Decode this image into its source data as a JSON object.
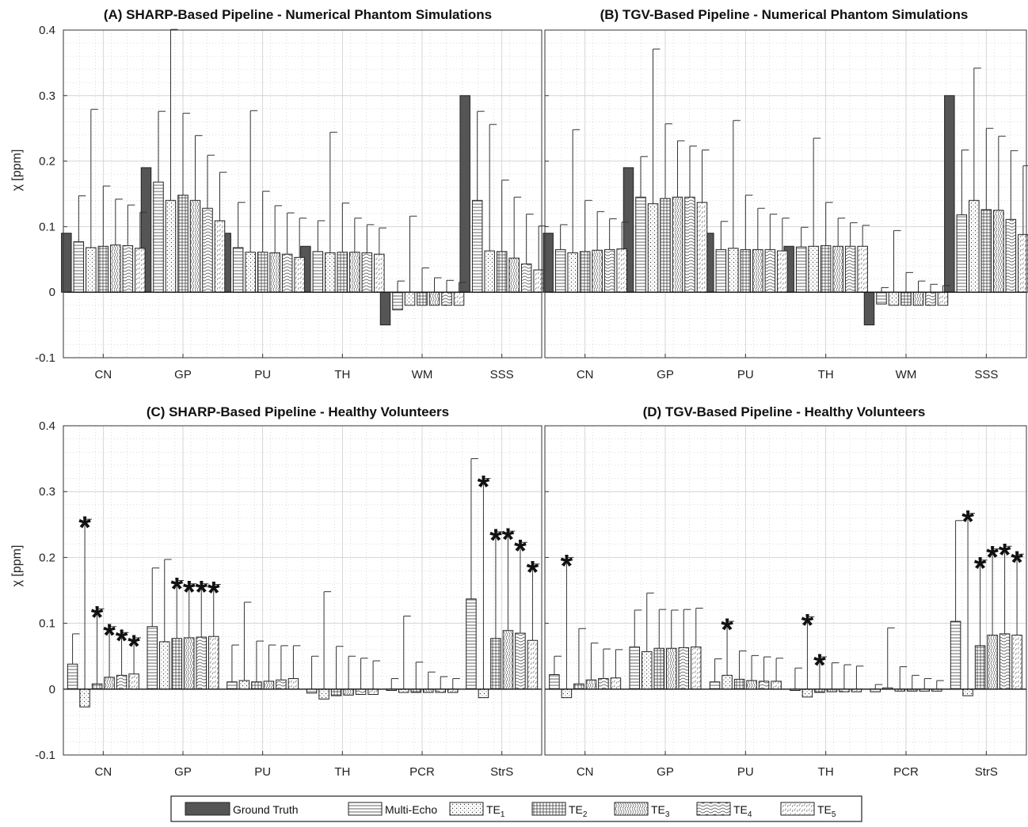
{
  "patterns": [
    "solid",
    "hlines",
    "dots",
    "grid",
    "wave",
    "contour",
    "hatch"
  ],
  "chart_data": [
    {
      "type": "bar",
      "title": "(A) SHARP-Based Pipeline - Numerical Phantom Simulations",
      "ylabel": "χ [ppm]",
      "ylim": [
        -0.1,
        0.4
      ],
      "yticks": [
        "-0.1",
        "0",
        "0.1",
        "0.2",
        "0.3",
        "0.4"
      ],
      "grid": true,
      "categories": [
        "CN",
        "GP",
        "PU",
        "TH",
        "WM",
        "SSS"
      ],
      "series": [
        {
          "name": "Ground Truth",
          "values": [
            0.09,
            0.19,
            0.09,
            0.07,
            -0.05,
            0.3
          ],
          "err": [
            null,
            null,
            null,
            null,
            null,
            null
          ]
        },
        {
          "name": "Multi-Echo",
          "values": [
            0.077,
            0.168,
            0.068,
            0.062,
            -0.027,
            0.14
          ],
          "err": [
            0.147,
            0.276,
            0.137,
            0.109,
            0.017,
            0.276
          ]
        },
        {
          "name": "TE1",
          "values": [
            0.068,
            0.14,
            0.061,
            0.06,
            -0.02,
            0.063
          ],
          "err": [
            0.279,
            0.401,
            0.277,
            0.244,
            0.116,
            0.256
          ]
        },
        {
          "name": "TE2",
          "values": [
            0.07,
            0.148,
            0.061,
            0.061,
            -0.02,
            0.062
          ],
          "err": [
            0.162,
            0.273,
            0.154,
            0.136,
            0.037,
            0.171
          ]
        },
        {
          "name": "TE3",
          "values": [
            0.072,
            0.14,
            0.06,
            0.061,
            -0.02,
            0.052
          ],
          "err": [
            0.142,
            0.239,
            0.132,
            0.113,
            0.022,
            0.145
          ]
        },
        {
          "name": "TE4",
          "values": [
            0.071,
            0.128,
            0.058,
            0.06,
            -0.02,
            0.043
          ],
          "err": [
            0.133,
            0.209,
            0.121,
            0.103,
            0.018,
            0.119
          ]
        },
        {
          "name": "TE5",
          "values": [
            0.067,
            0.109,
            0.053,
            0.058,
            -0.02,
            0.034
          ],
          "err": [
            0.122,
            0.183,
            0.113,
            0.098,
            0.015,
            0.101
          ]
        }
      ],
      "stars": [
        [],
        [],
        [],
        [],
        [],
        []
      ]
    },
    {
      "type": "bar",
      "title": "(B) TGV-Based Pipeline - Numerical Phantom Simulations",
      "ylabel": "",
      "ylim": [
        -0.1,
        0.4
      ],
      "yticks": [],
      "grid": true,
      "categories": [
        "CN",
        "GP",
        "PU",
        "TH",
        "WM",
        "SSS"
      ],
      "series": [
        {
          "name": "Ground Truth",
          "values": [
            0.09,
            0.19,
            0.09,
            0.07,
            -0.05,
            0.3
          ],
          "err": [
            null,
            null,
            null,
            null,
            null,
            null
          ]
        },
        {
          "name": "Multi-Echo",
          "values": [
            0.065,
            0.145,
            0.065,
            0.069,
            -0.018,
            0.118
          ],
          "err": [
            0.103,
            0.207,
            0.108,
            0.099,
            0.007,
            0.217
          ]
        },
        {
          "name": "TE1",
          "values": [
            0.06,
            0.135,
            0.067,
            0.07,
            -0.02,
            0.14
          ],
          "err": [
            0.248,
            0.371,
            0.262,
            0.235,
            0.094,
            0.342
          ]
        },
        {
          "name": "TE2",
          "values": [
            0.062,
            0.143,
            0.065,
            0.071,
            -0.02,
            0.126
          ],
          "err": [
            0.14,
            0.257,
            0.148,
            0.137,
            0.03,
            0.25
          ]
        },
        {
          "name": "TE3",
          "values": [
            0.064,
            0.145,
            0.065,
            0.07,
            -0.02,
            0.125
          ],
          "err": [
            0.123,
            0.231,
            0.128,
            0.113,
            0.017,
            0.238
          ]
        },
        {
          "name": "TE4",
          "values": [
            0.065,
            0.145,
            0.065,
            0.07,
            -0.02,
            0.111
          ],
          "err": [
            0.112,
            0.223,
            0.119,
            0.106,
            0.012,
            0.216
          ]
        },
        {
          "name": "TE5",
          "values": [
            0.066,
            0.137,
            0.063,
            0.07,
            -0.02,
            0.088
          ],
          "err": [
            0.107,
            0.217,
            0.113,
            0.102,
            0.01,
            0.193
          ]
        }
      ],
      "stars": [
        [],
        [],
        [],
        [],
        [],
        []
      ]
    },
    {
      "type": "bar",
      "title": "(C) SHARP-Based Pipeline - Healthy Volunteers",
      "ylabel": "χ [ppm]",
      "ylim": [
        -0.1,
        0.4
      ],
      "yticks": [
        "-0.1",
        "0",
        "0.1",
        "0.2",
        "0.3",
        "0.4"
      ],
      "grid": true,
      "categories": [
        "CN",
        "GP",
        "PU",
        "TH",
        "PCR",
        "StrS"
      ],
      "series": [
        {
          "name": "Multi-Echo",
          "values": [
            0.038,
            0.095,
            0.011,
            -0.006,
            -0.002,
            0.137
          ],
          "err": [
            0.084,
            0.184,
            0.067,
            0.05,
            0.016,
            0.35
          ]
        },
        {
          "name": "TE1",
          "values": [
            -0.027,
            0.072,
            0.013,
            -0.015,
            -0.005,
            -0.013
          ],
          "err": [
            0.258,
            0.197,
            0.132,
            0.148,
            0.111,
            0.32
          ]
        },
        {
          "name": "TE2",
          "values": [
            0.008,
            0.077,
            0.011,
            -0.01,
            -0.005,
            0.077
          ],
          "err": [
            0.122,
            0.165,
            0.073,
            0.065,
            0.041,
            0.239
          ]
        },
        {
          "name": "TE3",
          "values": [
            0.018,
            0.078,
            0.012,
            -0.009,
            -0.005,
            0.089
          ],
          "err": [
            0.095,
            0.16,
            0.067,
            0.05,
            0.026,
            0.24
          ]
        },
        {
          "name": "TE4",
          "values": [
            0.021,
            0.079,
            0.014,
            -0.008,
            -0.005,
            0.085
          ],
          "err": [
            0.086,
            0.16,
            0.066,
            0.047,
            0.019,
            0.223
          ]
        },
        {
          "name": "TE5",
          "values": [
            0.023,
            0.08,
            0.016,
            -0.008,
            -0.005,
            0.074
          ],
          "err": [
            0.078,
            0.159,
            0.066,
            0.043,
            0.016,
            0.19
          ]
        }
      ],
      "stars": [
        [
          1,
          2,
          3,
          4,
          5
        ],
        [
          2,
          3,
          4,
          5
        ],
        [],
        [],
        [],
        [
          1,
          2,
          3,
          4,
          5
        ]
      ]
    },
    {
      "type": "bar",
      "title": "(D) TGV-Based Pipeline - Healthy Volunteers",
      "ylabel": "",
      "ylim": [
        -0.1,
        0.4
      ],
      "yticks": [],
      "grid": true,
      "categories": [
        "CN",
        "GP",
        "PU",
        "TH",
        "PCR",
        "StrS"
      ],
      "series": [
        {
          "name": "Multi-Echo",
          "values": [
            0.022,
            0.064,
            0.011,
            -0.002,
            -0.004,
            0.103
          ],
          "err": [
            0.05,
            0.12,
            0.046,
            0.032,
            0.007,
            0.256
          ]
        },
        {
          "name": "TE1",
          "values": [
            -0.013,
            0.057,
            0.021,
            -0.012,
            0.002,
            -0.01
          ],
          "err": [
            0.2,
            0.146,
            0.103,
            0.11,
            0.093,
            0.267
          ]
        },
        {
          "name": "TE2",
          "values": [
            0.008,
            0.062,
            0.015,
            -0.005,
            -0.003,
            0.066
          ],
          "err": [
            0.092,
            0.121,
            0.058,
            0.049,
            0.034,
            0.196
          ]
        },
        {
          "name": "TE3",
          "values": [
            0.014,
            0.062,
            0.013,
            -0.004,
            -0.003,
            0.082
          ],
          "err": [
            0.07,
            0.12,
            0.051,
            0.04,
            0.021,
            0.213
          ]
        },
        {
          "name": "TE4",
          "values": [
            0.016,
            0.063,
            0.012,
            -0.004,
            -0.003,
            0.084
          ],
          "err": [
            0.061,
            0.121,
            0.049,
            0.037,
            0.016,
            0.217
          ]
        },
        {
          "name": "TE5",
          "values": [
            0.017,
            0.064,
            0.012,
            -0.004,
            -0.003,
            0.082
          ],
          "err": [
            0.06,
            0.123,
            0.047,
            0.035,
            0.013,
            0.205
          ]
        }
      ],
      "stars": [
        [
          1
        ],
        [],
        [
          1
        ],
        [
          1,
          2
        ],
        [],
        [
          1,
          2,
          3,
          4,
          5
        ]
      ]
    }
  ],
  "legend": {
    "items": [
      {
        "label": "Ground Truth",
        "sub": "",
        "pattern": "solid"
      },
      {
        "label": "Multi-Echo",
        "sub": "",
        "pattern": "hlines"
      },
      {
        "label": "TE",
        "sub": "1",
        "pattern": "dots"
      },
      {
        "label": "TE",
        "sub": "2",
        "pattern": "grid"
      },
      {
        "label": "TE",
        "sub": "3",
        "pattern": "wave"
      },
      {
        "label": "TE",
        "sub": "4",
        "pattern": "contour"
      },
      {
        "label": "TE",
        "sub": "5",
        "pattern": "hatch"
      }
    ]
  }
}
